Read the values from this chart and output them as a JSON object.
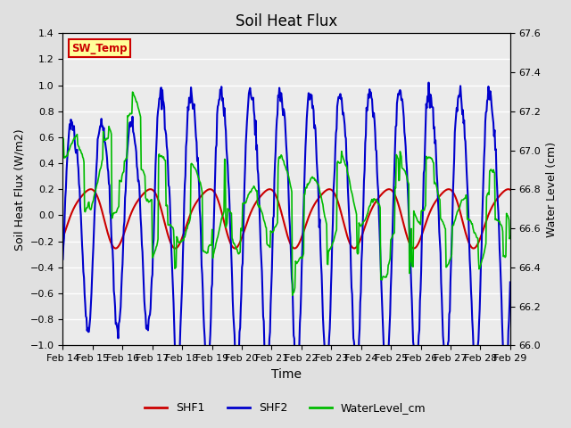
{
  "title": "Soil Heat Flux",
  "xlabel": "Time",
  "ylabel_left": "Soil Heat Flux (W/m2)",
  "ylabel_right": "Water Level (cm)",
  "ylim_left": [
    -1.0,
    1.4
  ],
  "ylim_right": [
    66.0,
    67.6
  ],
  "yticks_left": [
    -1.0,
    -0.8,
    -0.6,
    -0.4,
    -0.2,
    0.0,
    0.2,
    0.4,
    0.6,
    0.8,
    1.0,
    1.2,
    1.4
  ],
  "yticks_right": [
    66.0,
    66.2,
    66.4,
    66.6,
    66.8,
    67.0,
    67.2,
    67.4,
    67.6
  ],
  "xtick_labels": [
    "Feb 14",
    "Feb 15",
    "Feb 16",
    "Feb 17",
    "Feb 18",
    "Feb 19",
    "Feb 20",
    "Feb 21",
    "Feb 22",
    "Feb 23",
    "Feb 24",
    "Feb 25",
    "Feb 26",
    "Feb 27",
    "Feb 28",
    "Feb 29"
  ],
  "shf1_color": "#cc0000",
  "shf2_color": "#0000cc",
  "water_color": "#00bb00",
  "bg_color": "#e0e0e0",
  "plot_bg_color": "#ebebeb",
  "sw_temp_label": "SW_Temp",
  "sw_temp_bg": "#ffff99",
  "sw_temp_border": "#cc0000",
  "legend_labels": [
    "SHF1",
    "SHF2",
    "WaterLevel_cm"
  ]
}
